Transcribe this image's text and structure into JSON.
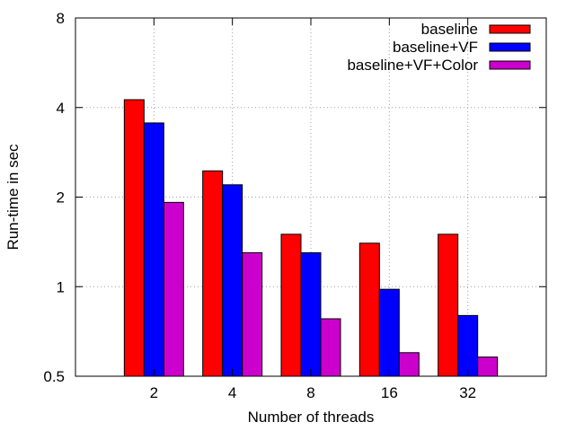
{
  "chart_data": {
    "type": "bar",
    "title": "",
    "xlabel": "Number of threads",
    "ylabel": "Run-time in sec",
    "yscale": "log2",
    "ylim": [
      0.5,
      8
    ],
    "yticks": [
      0.5,
      1,
      2,
      4,
      8
    ],
    "ytick_labels": [
      "0.5",
      "1",
      "2",
      "4",
      "8"
    ],
    "categories": [
      "2",
      "4",
      "8",
      "16",
      "32"
    ],
    "grid": true,
    "legend_position": "top-right",
    "series": [
      {
        "name": "baseline",
        "color": "#ff0000",
        "values": [
          4.25,
          2.45,
          1.5,
          1.4,
          1.5
        ]
      },
      {
        "name": "baseline+VF",
        "color": "#0000ff",
        "values": [
          3.55,
          2.2,
          1.3,
          0.98,
          0.8
        ]
      },
      {
        "name": "baseline+VF+Color",
        "color": "#cc00cc",
        "values": [
          1.92,
          1.3,
          0.78,
          0.6,
          0.58
        ]
      }
    ]
  }
}
